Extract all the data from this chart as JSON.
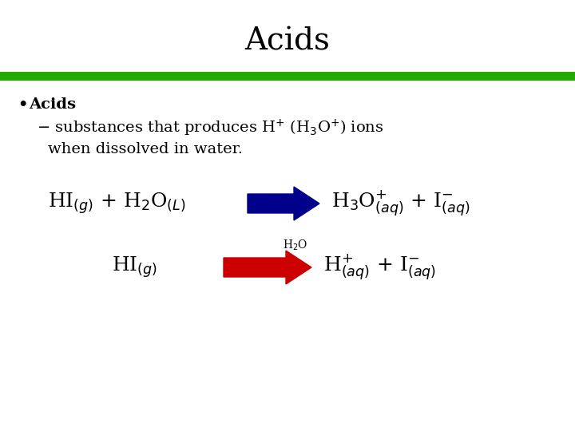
{
  "title": "Acids",
  "title_fontsize": 28,
  "title_fontfamily": "serif",
  "background_color": "#ffffff",
  "green_bar_color": "#22aa00",
  "arrow1_color": "#00008B",
  "arrow2_color": "#CC0000",
  "text_color": "#000000"
}
